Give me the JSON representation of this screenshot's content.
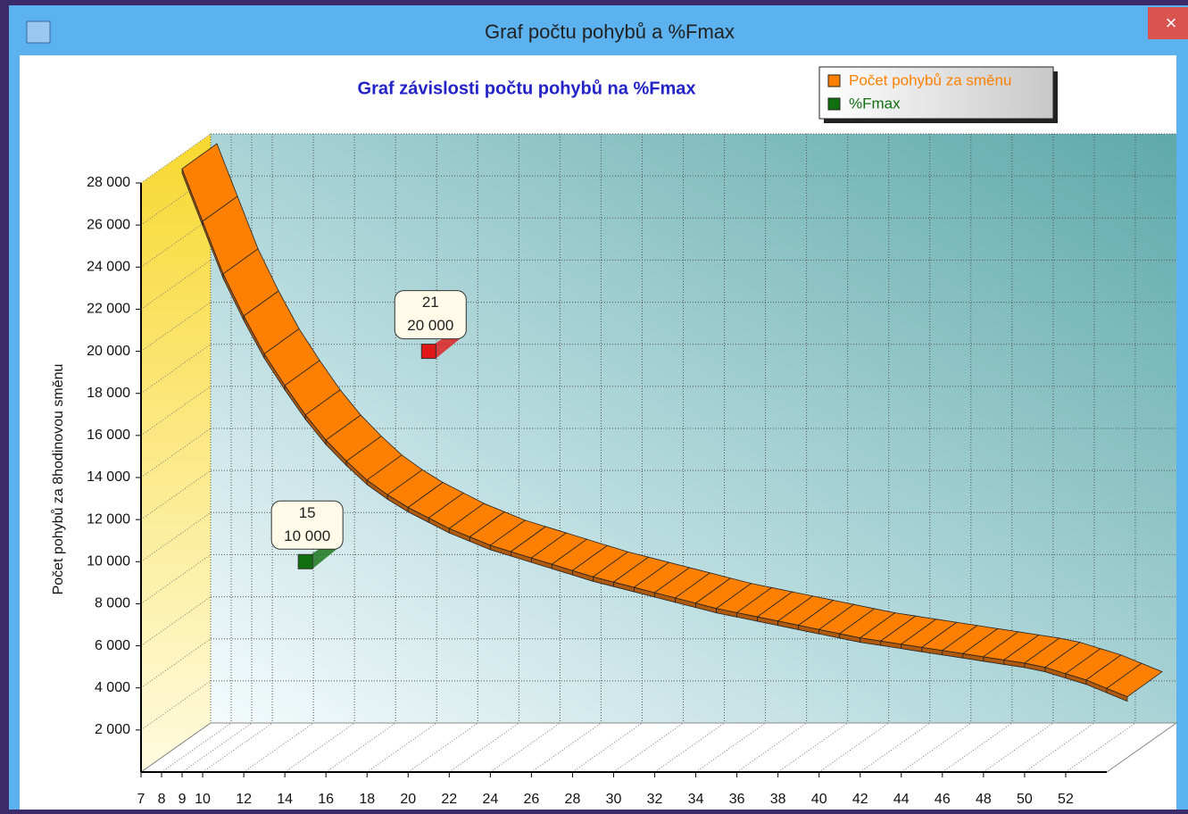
{
  "window_title": "Graf počtu pohybů a %Fmax",
  "chart_data": {
    "type": "ribbon3d",
    "title": "Graf závislosti počtu pohybů na %Fmax",
    "y_label": "Počet pohybů za  8hodinovou směnu",
    "legend_position": "top-right",
    "grid": true,
    "xlim": [
      7,
      54
    ],
    "ylim": [
      0,
      28000
    ],
    "xticks": [
      7,
      8,
      9,
      10,
      12,
      14,
      16,
      18,
      20,
      22,
      24,
      26,
      28,
      30,
      32,
      34,
      36,
      38,
      40,
      42,
      44,
      46,
      48,
      50,
      52
    ],
    "yticks": [
      {
        "value": 2000,
        "label": "2 000"
      },
      {
        "value": 4000,
        "label": "4 000"
      },
      {
        "value": 6000,
        "label": "6 000"
      },
      {
        "value": 8000,
        "label": "8 000"
      },
      {
        "value": 10000,
        "label": "10 000"
      },
      {
        "value": 12000,
        "label": "12 000"
      },
      {
        "value": 14000,
        "label": "14 000"
      },
      {
        "value": 16000,
        "label": "16 000"
      },
      {
        "value": 18000,
        "label": "18 000"
      },
      {
        "value": 20000,
        "label": "20 000"
      },
      {
        "value": 22000,
        "label": "22 000"
      },
      {
        "value": 24000,
        "label": "24 000"
      },
      {
        "value": 26000,
        "label": "26 000"
      },
      {
        "value": 28000,
        "label": "28 000"
      }
    ],
    "series": [
      {
        "name": "Počet pohybů za směnu",
        "color": "#ff8000",
        "x": [
          8,
          9,
          10,
          11,
          12,
          13,
          14,
          15,
          16,
          17,
          18,
          19,
          20,
          21,
          22,
          23,
          24,
          25,
          26,
          27,
          28,
          29,
          30,
          31,
          32,
          33,
          34,
          35,
          36,
          37,
          38,
          39,
          40,
          41,
          42,
          43,
          44,
          45,
          46,
          47,
          48,
          49,
          50,
          51,
          52,
          53,
          54
        ],
        "values": [
          28000,
          25500,
          23000,
          21000,
          19200,
          17700,
          16300,
          15100,
          14100,
          13200,
          12500,
          11900,
          11400,
          10900,
          10500,
          10100,
          9800,
          9500,
          9200,
          8900,
          8600,
          8350,
          8100,
          7850,
          7600,
          7350,
          7100,
          6900,
          6700,
          6500,
          6300,
          6100,
          5900,
          5700,
          5550,
          5400,
          5250,
          5100,
          4950,
          4800,
          4650,
          4500,
          4300,
          4000,
          3700,
          3300,
          2900
        ]
      },
      {
        "name": "%Fmax",
        "color": "#107010",
        "x": [
          15
        ],
        "values": [
          10000
        ],
        "value_labels": [
          "10 000"
        ]
      }
    ],
    "points": [
      {
        "x": 21,
        "value": 20000,
        "label": "20 000",
        "color": "#e01818"
      }
    ]
  }
}
